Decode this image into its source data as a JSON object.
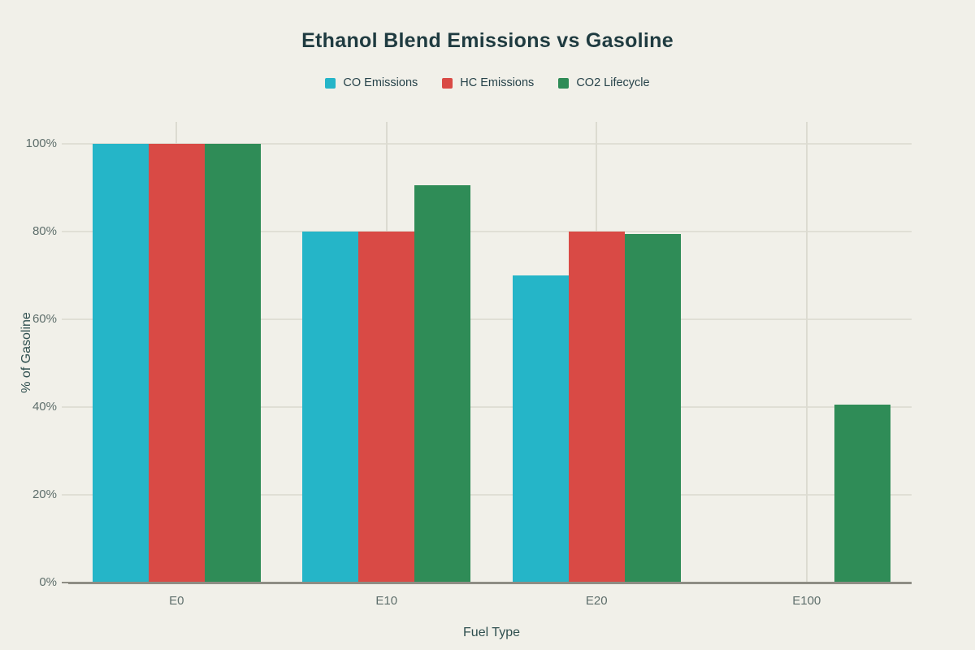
{
  "page": {
    "background": "#f1f0e9"
  },
  "title": {
    "text": "Ethanol Blend Emissions vs Gasoline",
    "color": "#1f3b40"
  },
  "legend": {
    "items": [
      {
        "label": "CO Emissions",
        "color": "#25b5c8"
      },
      {
        "label": "HC Emissions",
        "color": "#d94a45"
      },
      {
        "label": "CO2 Lifecycle",
        "color": "#2f8c57"
      }
    ]
  },
  "chart_data": {
    "type": "bar",
    "title": "Ethanol Blend Emissions vs Gasoline",
    "categories": [
      "E0",
      "E10",
      "E20",
      "E100"
    ],
    "series": [
      {
        "name": "CO Emissions",
        "color": "#25b5c8",
        "values": [
          100,
          80,
          70,
          0
        ]
      },
      {
        "name": "HC Emissions",
        "color": "#d94a45",
        "values": [
          100,
          80,
          80,
          0
        ]
      },
      {
        "name": "CO2 Lifecycle",
        "color": "#2f8c57",
        "values": [
          100,
          90.5,
          79.5,
          40.5
        ]
      }
    ],
    "xlabel": "Fuel Type",
    "ylabel": "% of Gasoline",
    "ylim": [
      0,
      105
    ],
    "yticks": [
      0,
      20,
      40,
      60,
      80,
      100
    ],
    "ytick_suffix": "%",
    "ytick_labels": [
      "0%",
      "20%",
      "40%",
      "60%",
      "80%",
      "100%"
    ],
    "grid": true,
    "legend_position": "top",
    "colors": {
      "background": "#f1f0e9",
      "gridline": "#e0dfd5",
      "vertical_gridline": "#dcdbd1",
      "axis_line": "#8e8d84",
      "tick_label": "#5e6e6b",
      "axis_title": "#2f4f4f",
      "title": "#1f3b40"
    }
  }
}
